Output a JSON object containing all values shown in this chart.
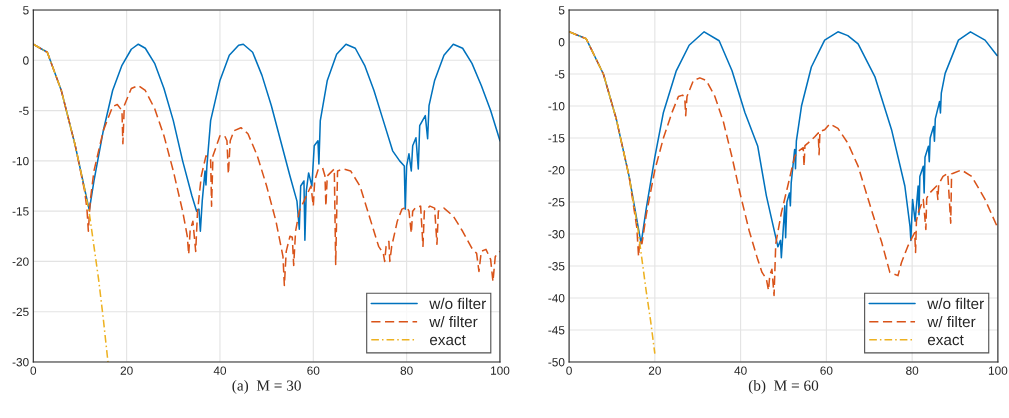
{
  "chart_data": [
    {
      "type": "line",
      "xlabel": "(a)  M = 30",
      "xlim": [
        0,
        100
      ],
      "ylim": [
        -30,
        5
      ],
      "xticks": [
        0,
        20,
        40,
        60,
        80,
        100
      ],
      "yticks": [
        -30,
        -25,
        -20,
        -15,
        -10,
        -5,
        0,
        5
      ],
      "grid": true,
      "legend": "bottom right",
      "series": [
        {
          "name": "w/o filter",
          "color": "#0072bd",
          "line_style": "solid",
          "x": [
            0,
            3,
            6,
            9,
            11,
            12,
            13,
            15,
            17,
            19,
            21,
            22.5,
            24,
            26,
            28,
            30,
            32,
            34,
            35,
            35.5,
            35.8,
            36.2,
            36.8,
            37,
            37.2,
            38,
            40,
            42,
            44,
            45,
            47,
            49,
            51,
            53,
            55,
            56.5,
            57,
            57.3,
            58,
            58.2,
            58.5,
            59,
            59.7,
            60.2,
            61,
            61.2,
            61.5,
            63,
            65,
            67,
            69,
            71,
            73,
            75,
            77,
            78.5,
            79.5,
            79.7,
            80,
            80.5,
            81,
            81.3,
            82,
            82.5,
            82.8,
            84,
            84.5,
            84.8,
            86,
            88,
            90,
            92,
            94,
            96,
            98,
            100
          ],
          "values": [
            1.6,
            0.8,
            -3,
            -8.5,
            -12.8,
            -14.9,
            -12,
            -7,
            -3,
            -0.5,
            1.1,
            1.6,
            1.2,
            -0.3,
            -2.8,
            -6,
            -10,
            -13.5,
            -15,
            -14.8,
            -17,
            -14,
            -11,
            -12.4,
            -10.5,
            -6,
            -2,
            0.5,
            1.5,
            1.6,
            0.8,
            -1.5,
            -4.5,
            -8,
            -11.5,
            -14,
            -16.8,
            -12.5,
            -12,
            -17.9,
            -13,
            -11.2,
            -12.5,
            -8.5,
            -8,
            -10.3,
            -6,
            -2,
            0.6,
            1.6,
            1.2,
            -0.5,
            -3,
            -6,
            -9,
            -10,
            -10.5,
            -14.8,
            -10.5,
            -9.3,
            -11,
            -8.5,
            -7.7,
            -10.8,
            -6.5,
            -5.5,
            -7.8,
            -4.5,
            -2,
            0.5,
            1.6,
            1.2,
            -0.3,
            -2.5,
            -5,
            -8
          ]
        },
        {
          "name": "w/ filter",
          "color": "#d95319",
          "line_style": "dashed",
          "x": [
            0,
            3,
            6,
            9,
            11,
            11.5,
            11.8,
            12.2,
            13,
            15,
            17,
            18,
            19,
            19.2,
            19.5,
            21,
            22.5,
            24,
            26,
            28,
            30,
            32,
            33,
            33.3,
            33.6,
            34.2,
            34.8,
            35.2,
            36,
            37,
            38,
            38.2,
            38.5,
            40,
            41,
            41.5,
            41.8,
            42.2,
            43,
            44.5,
            46,
            48,
            50,
            52,
            53.5,
            53.8,
            54.2,
            55,
            55.5,
            55.8,
            56.2,
            57,
            58.5,
            59.5,
            60,
            60.3,
            61,
            62,
            62.5,
            62.7,
            63,
            64.5,
            64.8,
            65.2,
            66.5,
            68,
            70,
            72,
            74,
            75,
            75.3,
            75.6,
            76.2,
            76.4,
            76.8,
            78,
            79,
            80,
            80.5,
            81,
            81.3,
            82,
            83,
            83.5,
            83.8,
            85,
            86,
            86.5,
            86.8,
            88,
            90,
            92,
            94,
            95,
            95.5,
            96,
            97,
            98,
            98.5,
            99,
            100
          ],
          "values": [
            1.6,
            0.8,
            -3,
            -8.5,
            -13,
            -14.8,
            -17,
            -14,
            -11,
            -7,
            -4.6,
            -4.4,
            -5,
            -8.3,
            -4.5,
            -2.8,
            -2.5,
            -3,
            -4.8,
            -7.5,
            -11,
            -15,
            -17.5,
            -19.3,
            -17,
            -16,
            -19,
            -15,
            -11.5,
            -9.5,
            -9.8,
            -14.5,
            -9.5,
            -7.5,
            -7.5,
            -8,
            -11.3,
            -8,
            -7,
            -6.7,
            -7.3,
            -9.5,
            -12.5,
            -16,
            -19.5,
            -22.4,
            -19,
            -17.5,
            -17.6,
            -20.4,
            -17,
            -15,
            -13.5,
            -12.5,
            -14.5,
            -12,
            -10.9,
            -10.7,
            -11.5,
            -14.5,
            -11.5,
            -10.8,
            -20.3,
            -11,
            -10.8,
            -11,
            -12.5,
            -15.5,
            -18.5,
            -19.2,
            -20,
            -18.5,
            -18,
            -20,
            -18.5,
            -16,
            -14.8,
            -14.6,
            -15,
            -17.2,
            -15,
            -14.6,
            -14.5,
            -18.5,
            -15,
            -14.5,
            -14.7,
            -18.3,
            -15,
            -14.7,
            -15.5,
            -17,
            -18.7,
            -19.2,
            -21,
            -19,
            -18.8,
            -19.8,
            -22,
            -19.5,
            -19
          ]
        },
        {
          "name": "exact",
          "color": "#edb120",
          "line_style": "dashdot",
          "x": [
            0,
            3,
            6,
            9,
            11,
            12,
            13,
            14,
            15,
            16
          ],
          "values": [
            1.6,
            0.8,
            -3,
            -8.5,
            -12.8,
            -15.2,
            -18.5,
            -21.8,
            -25.7,
            -30
          ]
        }
      ]
    },
    {
      "type": "line",
      "xlabel": "(b)  M = 60",
      "xlim": [
        0,
        100
      ],
      "ylim": [
        -50,
        5
      ],
      "xticks": [
        0,
        20,
        40,
        60,
        80,
        100
      ],
      "yticks": [
        -50,
        -45,
        -40,
        -35,
        -30,
        -25,
        -20,
        -15,
        -10,
        -5,
        0,
        5
      ],
      "grid": true,
      "legend": "bottom right",
      "series": [
        {
          "name": "w/o filter",
          "color": "#0072bd",
          "line_style": "solid",
          "x": [
            0,
            4,
            8,
            11,
            14,
            16,
            16.8,
            18,
            20,
            22,
            25,
            28,
            31.5,
            35,
            38,
            41,
            44,
            46,
            48.7,
            49.3,
            49.5,
            50.3,
            50.5,
            50.8,
            51.4,
            51.6,
            51.8,
            52.6,
            52.8,
            53,
            54.2,
            56.5,
            59.6,
            62.7,
            65,
            67.4,
            71.3,
            75.2,
            78.3,
            79.5,
            79.7,
            80.1,
            80.7,
            81.4,
            81.6,
            81.8,
            82.6,
            82.8,
            83,
            83.8,
            84,
            84.2,
            85,
            85.2,
            85.4,
            86.4,
            86.6,
            86.8,
            87.7,
            90.8,
            93.6,
            97,
            99.8
          ],
          "values": [
            1.6,
            0.5,
            -5,
            -12,
            -21,
            -28.5,
            -31.5,
            -26,
            -18,
            -11,
            -4.5,
            -0.5,
            1.6,
            0.2,
            -4.5,
            -11,
            -16.3,
            -24,
            -32,
            -31,
            -33.7,
            -25.6,
            -30.6,
            -25,
            -23.6,
            -25.6,
            -22,
            -16.8,
            -19.8,
            -15.5,
            -10,
            -3.9,
            0.3,
            1.6,
            1,
            -0.3,
            -5.4,
            -13.7,
            -22.5,
            -28.8,
            -31,
            -24.6,
            -28,
            -22.5,
            -27,
            -21,
            -19.4,
            -23.6,
            -18,
            -16.3,
            -18.7,
            -15,
            -13.2,
            -15.5,
            -12,
            -9.3,
            -11.1,
            -8,
            -4.9,
            0.3,
            1.6,
            0.3,
            -2.1
          ]
        },
        {
          "name": "w/ filter",
          "color": "#d95319",
          "line_style": "dashed",
          "x": [
            0,
            4,
            8,
            11,
            14,
            15.8,
            16.2,
            16.5,
            17,
            18,
            20,
            22,
            24,
            25.5,
            26.5,
            27,
            27.2,
            27.5,
            29,
            30.5,
            32,
            34,
            36,
            38,
            40,
            42,
            44,
            45,
            46,
            46.5,
            46.8,
            47.3,
            47.8,
            48.2,
            49.5,
            51,
            52.6,
            53.4,
            54.6,
            54.8,
            55,
            55.7,
            57.3,
            58.1,
            58.3,
            58.5,
            59.6,
            60.8,
            62.7,
            65,
            67.4,
            70.5,
            72.9,
            74.8,
            76.7,
            77.5,
            79,
            79.8,
            80.6,
            80.8,
            81,
            81.4,
            82.6,
            83.2,
            83.4,
            84.1,
            85.7,
            86,
            86.2,
            87.2,
            88.3,
            89,
            89.2,
            89.6,
            91.5,
            93.9,
            97,
            99.8
          ],
          "values": [
            1.6,
            0.5,
            -5,
            -12,
            -21,
            -29,
            -33.5,
            -31,
            -31.5,
            -27,
            -20,
            -15,
            -11,
            -8.5,
            -8.3,
            -9,
            -11.5,
            -8.5,
            -6,
            -5.6,
            -6,
            -8.5,
            -12.5,
            -18,
            -24,
            -29.5,
            -34,
            -36,
            -37,
            -38.8,
            -36.5,
            -35.5,
            -39.6,
            -31.5,
            -26.7,
            -22.5,
            -17.9,
            -17.1,
            -16.5,
            -19.4,
            -16.2,
            -15.8,
            -14.8,
            -14.2,
            -17.6,
            -14,
            -13.7,
            -12.8,
            -13.5,
            -15.8,
            -19.4,
            -26.2,
            -31.3,
            -36,
            -36.5,
            -34.5,
            -31.9,
            -30.8,
            -29.8,
            -32.9,
            -28,
            -26.7,
            -24.6,
            -29.3,
            -24.4,
            -23.6,
            -22.5,
            -24.6,
            -22.2,
            -21,
            -20.5,
            -28.3,
            -20.6,
            -20.5,
            -20,
            -21,
            -24.6,
            -28.8
          ]
        },
        {
          "name": "exact",
          "color": "#edb120",
          "line_style": "dashdot",
          "x": [
            0,
            4,
            8,
            11,
            14,
            16,
            17,
            18,
            19,
            20
          ],
          "values": [
            1.6,
            0.5,
            -5,
            -12,
            -21,
            -29,
            -34,
            -39,
            -43.5,
            -48.7
          ]
        }
      ]
    }
  ]
}
